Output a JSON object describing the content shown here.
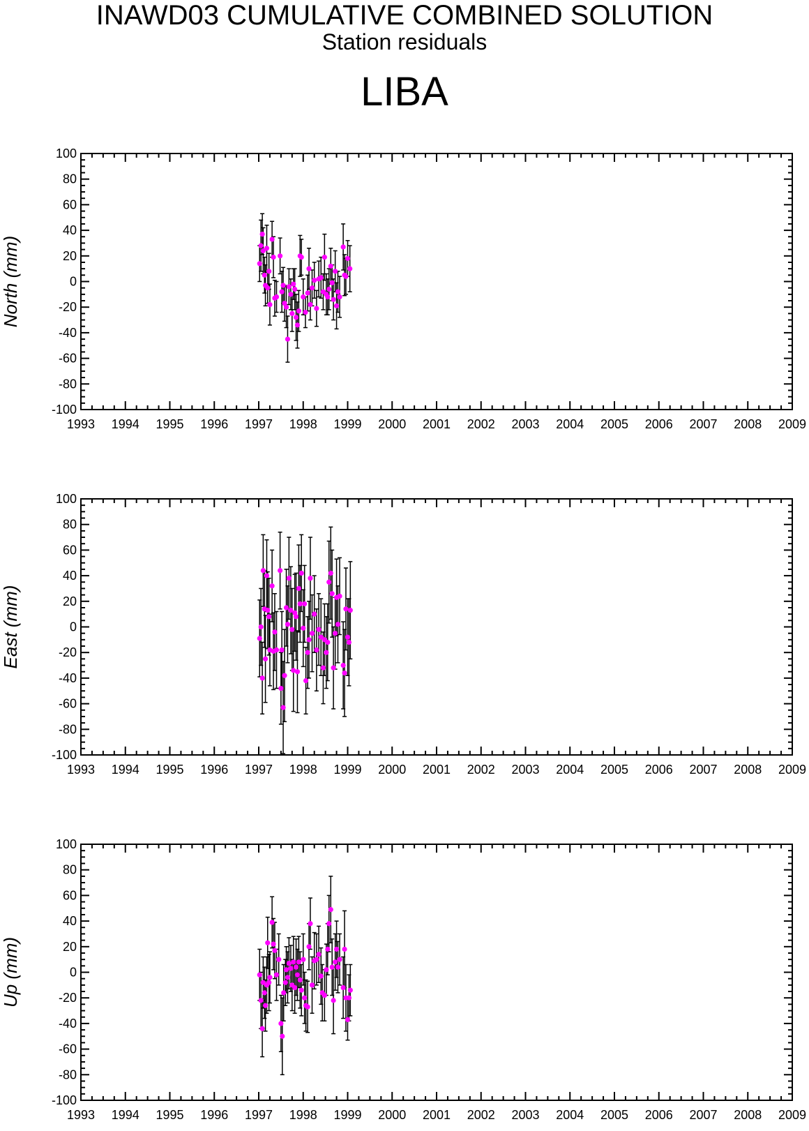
{
  "header": {
    "title": "INAWD03 CUMULATIVE COMBINED SOLUTION",
    "subtitle": "Station residuals",
    "station": "LIBA"
  },
  "colors": {
    "marker": "#ff00ff",
    "errorbar": "#000000",
    "axis": "#000000"
  },
  "chart_data": [
    {
      "type": "scatter",
      "ylabel": "North (mm)",
      "xlim": [
        1993,
        2009
      ],
      "ylim": [
        -100,
        100
      ],
      "x_ticks": [
        "1993",
        "1994",
        "1995",
        "1996",
        "1997",
        "1998",
        "1999",
        "2000",
        "2001",
        "2002",
        "2003",
        "2004",
        "2005",
        "2006",
        "2007",
        "2008",
        "2009"
      ],
      "y_ticks": [
        "100",
        "80",
        "60",
        "40",
        "20",
        "0",
        "-20",
        "-40",
        "-60",
        "-80",
        "-100"
      ],
      "grid": false,
      "series": [
        {
          "points": [
            [
              1997.02,
              14,
              14
            ],
            [
              1997.05,
              28,
              20
            ],
            [
              1997.08,
              37,
              16
            ],
            [
              1997.1,
              24,
              18
            ],
            [
              1997.13,
              5,
              14
            ],
            [
              1997.15,
              -3,
              16
            ],
            [
              1997.18,
              26,
              18
            ],
            [
              1997.2,
              -5,
              12
            ],
            [
              1997.23,
              8,
              14
            ],
            [
              1997.25,
              -18,
              16
            ],
            [
              1997.3,
              33,
              14
            ],
            [
              1997.33,
              19,
              16
            ],
            [
              1997.36,
              -13,
              14
            ],
            [
              1997.4,
              -12,
              12
            ],
            [
              1997.48,
              20,
              14
            ],
            [
              1997.52,
              -8,
              16
            ],
            [
              1997.55,
              -3,
              14
            ],
            [
              1997.58,
              -17,
              14
            ],
            [
              1997.62,
              -20,
              16
            ],
            [
              1997.65,
              -45,
              18
            ],
            [
              1997.68,
              -4,
              14
            ],
            [
              1997.72,
              -10,
              12
            ],
            [
              1997.75,
              -25,
              14
            ],
            [
              1997.78,
              -2,
              12
            ],
            [
              1997.81,
              -6,
              16
            ],
            [
              1997.84,
              -28,
              18
            ],
            [
              1997.87,
              -34,
              18
            ],
            [
              1997.9,
              -23,
              16
            ],
            [
              1997.93,
              20,
              16
            ],
            [
              1997.96,
              19,
              14
            ],
            [
              1998.0,
              -12,
              14
            ],
            [
              1998.05,
              -24,
              12
            ],
            [
              1998.1,
              -9,
              14
            ],
            [
              1998.13,
              10,
              16
            ],
            [
              1998.16,
              -18,
              12
            ],
            [
              1998.2,
              -5,
              14
            ],
            [
              1998.25,
              1,
              14
            ],
            [
              1998.3,
              -21,
              14
            ],
            [
              1998.35,
              2,
              14
            ],
            [
              1998.4,
              3,
              16
            ],
            [
              1998.45,
              -8,
              14
            ],
            [
              1998.48,
              19,
              18
            ],
            [
              1998.52,
              -10,
              16
            ],
            [
              1998.55,
              -12,
              14
            ],
            [
              1998.58,
              -6,
              16
            ],
            [
              1998.62,
              12,
              14
            ],
            [
              1998.65,
              -1,
              14
            ],
            [
              1998.68,
              -14,
              16
            ],
            [
              1998.72,
              8,
              16
            ],
            [
              1998.75,
              -19,
              18
            ],
            [
              1998.78,
              -8,
              16
            ],
            [
              1998.82,
              -12,
              16
            ],
            [
              1998.9,
              27,
              18
            ],
            [
              1998.93,
              5,
              16
            ],
            [
              1998.96,
              4,
              14
            ],
            [
              1999.0,
              18,
              14
            ],
            [
              1999.05,
              10,
              18
            ]
          ]
        }
      ]
    },
    {
      "type": "scatter",
      "ylabel": "East (mm)",
      "xlim": [
        1993,
        2009
      ],
      "ylim": [
        -100,
        100
      ],
      "x_ticks": [
        "1993",
        "1994",
        "1995",
        "1996",
        "1997",
        "1998",
        "1999",
        "2000",
        "2001",
        "2002",
        "2003",
        "2004",
        "2005",
        "2006",
        "2007",
        "2008",
        "2009"
      ],
      "y_ticks": [
        "100",
        "80",
        "60",
        "40",
        "20",
        "0",
        "-20",
        "-40",
        "-60",
        "-80",
        "-100"
      ],
      "grid": false,
      "series": [
        {
          "points": [
            [
              1997.02,
              -9,
              30
            ],
            [
              1997.05,
              0,
              30
            ],
            [
              1997.08,
              -40,
              28
            ],
            [
              1997.1,
              44,
              28
            ],
            [
              1997.13,
              14,
              30
            ],
            [
              1997.15,
              -25,
              34
            ],
            [
              1997.18,
              40,
              28
            ],
            [
              1997.2,
              13,
              30
            ],
            [
              1997.23,
              8,
              30
            ],
            [
              1997.25,
              -18,
              28
            ],
            [
              1997.3,
              32,
              28
            ],
            [
              1997.33,
              -19,
              30
            ],
            [
              1997.36,
              -4,
              30
            ],
            [
              1997.4,
              -18,
              30
            ],
            [
              1997.48,
              44,
              30
            ],
            [
              1997.5,
              -48,
              28
            ],
            [
              1997.52,
              -18,
              30
            ],
            [
              1997.55,
              -63,
              36
            ],
            [
              1997.58,
              -38,
              36
            ],
            [
              1997.62,
              15,
              30
            ],
            [
              1997.65,
              2,
              30
            ],
            [
              1997.68,
              38,
              32
            ],
            [
              1997.72,
              13,
              34
            ],
            [
              1997.75,
              -2,
              32
            ],
            [
              1997.78,
              -34,
              32
            ],
            [
              1997.81,
              11,
              30
            ],
            [
              1997.84,
              8,
              34
            ],
            [
              1997.87,
              -35,
              32
            ],
            [
              1997.9,
              30,
              34
            ],
            [
              1997.93,
              18,
              30
            ],
            [
              1997.96,
              42,
              30
            ],
            [
              1998.0,
              -1,
              30
            ],
            [
              1998.03,
              18,
              30
            ],
            [
              1998.06,
              -42,
              26
            ],
            [
              1998.1,
              -20,
              28
            ],
            [
              1998.13,
              -10,
              30
            ],
            [
              1998.16,
              38,
              32
            ],
            [
              1998.2,
              -5,
              30
            ],
            [
              1998.25,
              10,
              30
            ],
            [
              1998.3,
              -18,
              32
            ],
            [
              1998.35,
              -2,
              28
            ],
            [
              1998.4,
              -8,
              30
            ],
            [
              1998.45,
              -32,
              28
            ],
            [
              1998.48,
              -10,
              28
            ],
            [
              1998.52,
              -20,
              28
            ],
            [
              1998.55,
              -12,
              30
            ],
            [
              1998.58,
              35,
              32
            ],
            [
              1998.62,
              42,
              36
            ],
            [
              1998.65,
              26,
              34
            ],
            [
              1998.68,
              -32,
              32
            ],
            [
              1998.72,
              -5,
              28
            ],
            [
              1998.75,
              23,
              30
            ],
            [
              1998.78,
              2,
              30
            ],
            [
              1998.82,
              24,
              30
            ],
            [
              1998.9,
              -30,
              34
            ],
            [
              1998.93,
              -36,
              34
            ],
            [
              1998.96,
              14,
              32
            ],
            [
              1999.0,
              -8,
              30
            ],
            [
              1999.03,
              -12,
              34
            ],
            [
              1999.06,
              13,
              38
            ]
          ]
        }
      ]
    },
    {
      "type": "scatter",
      "ylabel": "Up (mm)",
      "xlim": [
        1993,
        2009
      ],
      "ylim": [
        -100,
        100
      ],
      "x_ticks": [
        "1993",
        "1994",
        "1995",
        "1996",
        "1997",
        "1998",
        "1999",
        "2000",
        "2001",
        "2002",
        "2003",
        "2004",
        "2005",
        "2006",
        "2007",
        "2008",
        "2009"
      ],
      "y_ticks": [
        "100",
        "80",
        "60",
        "40",
        "20",
        "0",
        "-20",
        "-40",
        "-60",
        "-80",
        "-100"
      ],
      "grid": false,
      "series": [
        {
          "points": [
            [
              1997.02,
              -2,
              20
            ],
            [
              1997.05,
              -22,
              22
            ],
            [
              1997.08,
              -44,
              22
            ],
            [
              1997.1,
              -8,
              20
            ],
            [
              1997.13,
              -16,
              20
            ],
            [
              1997.15,
              -26,
              20
            ],
            [
              1997.18,
              -10,
              22
            ],
            [
              1997.2,
              23,
              20
            ],
            [
              1997.23,
              -8,
              22
            ],
            [
              1997.25,
              -4,
              20
            ],
            [
              1997.3,
              39,
              20
            ],
            [
              1997.33,
              22,
              20
            ],
            [
              1997.36,
              17,
              22
            ],
            [
              1997.4,
              -2,
              20
            ],
            [
              1997.45,
              10,
              20
            ],
            [
              1997.5,
              -40,
              22
            ],
            [
              1997.53,
              -50,
              30
            ],
            [
              1997.56,
              -16,
              22
            ],
            [
              1997.6,
              -8,
              18
            ],
            [
              1997.62,
              2,
              18
            ],
            [
              1997.65,
              -4,
              20
            ],
            [
              1997.68,
              7,
              20
            ],
            [
              1997.72,
              3,
              18
            ],
            [
              1997.75,
              -10,
              20
            ],
            [
              1997.78,
              8,
              20
            ],
            [
              1997.81,
              -12,
              20
            ],
            [
              1997.84,
              4,
              22
            ],
            [
              1997.87,
              -2,
              20
            ],
            [
              1997.9,
              8,
              20
            ],
            [
              1997.93,
              -6,
              22
            ],
            [
              1997.96,
              -14,
              20
            ],
            [
              1998.0,
              10,
              20
            ],
            [
              1998.03,
              -20,
              20
            ],
            [
              1998.06,
              -26,
              20
            ],
            [
              1998.1,
              -27,
              20
            ],
            [
              1998.13,
              20,
              18
            ],
            [
              1998.16,
              38,
              20
            ],
            [
              1998.2,
              -10,
              22
            ],
            [
              1998.25,
              9,
              22
            ],
            [
              1998.3,
              10,
              20
            ],
            [
              1998.35,
              14,
              22
            ],
            [
              1998.4,
              -3,
              22
            ],
            [
              1998.43,
              -16,
              22
            ],
            [
              1998.48,
              -18,
              20
            ],
            [
              1998.52,
              2,
              20
            ],
            [
              1998.55,
              18,
              20
            ],
            [
              1998.58,
              38,
              22
            ],
            [
              1998.62,
              49,
              26
            ],
            [
              1998.65,
              4,
              22
            ],
            [
              1998.68,
              -22,
              26
            ],
            [
              1998.72,
              8,
              22
            ],
            [
              1998.75,
              18,
              22
            ],
            [
              1998.78,
              4,
              20
            ],
            [
              1998.82,
              10,
              20
            ],
            [
              1998.9,
              -12,
              24
            ],
            [
              1998.93,
              18,
              30
            ],
            [
              1998.96,
              -20,
              26
            ],
            [
              1999.0,
              -37,
              16
            ],
            [
              1999.03,
              -20,
              18
            ],
            [
              1999.06,
              -14,
              20
            ]
          ]
        }
      ]
    }
  ]
}
